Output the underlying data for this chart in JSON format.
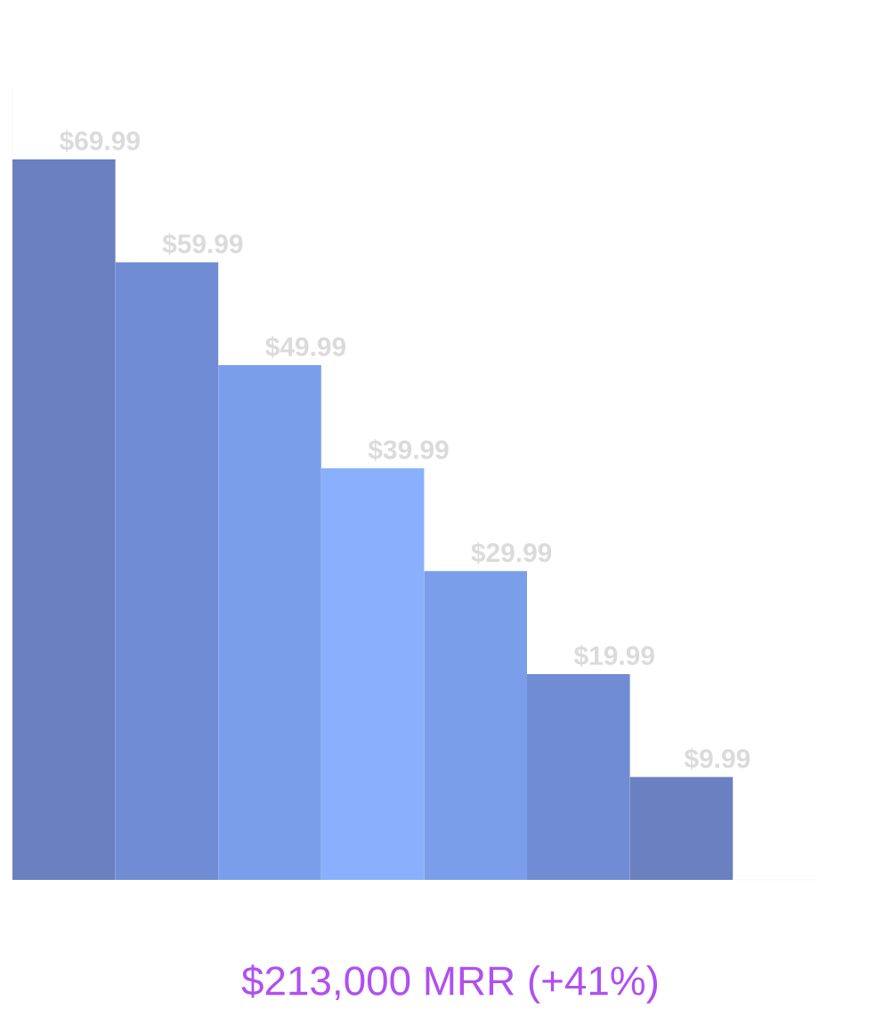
{
  "chart_data": {
    "type": "bar",
    "title": "$213,000 MRR (+41%)",
    "categories": [
      null,
      null,
      null,
      null,
      null,
      null,
      null
    ],
    "values": [
      69.99,
      59.99,
      49.99,
      39.99,
      29.99,
      19.99,
      9.99
    ],
    "colors": [
      "#6a80c0",
      "#708cd4",
      "#7b9eea",
      "#8ab0fd",
      "#7b9eea",
      "#708cd4",
      "#6a80c0"
    ],
    "value_labels": [
      "$69.99",
      "$59.99",
      "$49.99",
      "$39.99",
      "$29.99",
      "$19.99",
      "$9.99"
    ]
  }
}
